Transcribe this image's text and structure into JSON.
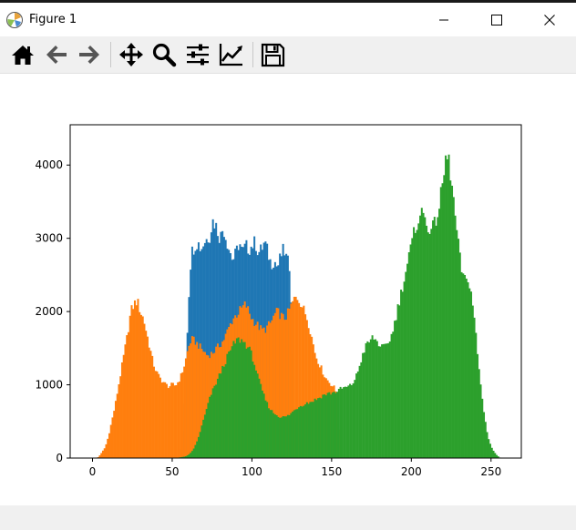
{
  "window": {
    "title": "Figure 1"
  },
  "toolbar": {
    "tools": [
      "home-icon",
      "back-arrow-icon",
      "forward-arrow-icon",
      "pan-icon",
      "zoom-icon",
      "configure-subplots-icon",
      "edit-axis-icon",
      "save-icon"
    ]
  },
  "colors": {
    "blue": "#1f77b4",
    "orange": "#ff7f0e",
    "green": "#2ca02c"
  },
  "chart_data": {
    "type": "histogram",
    "title": "",
    "xlabel": "",
    "ylabel": "",
    "xlim": [
      -14,
      269
    ],
    "ylim": [
      0,
      4550
    ],
    "xticks": [
      0,
      50,
      100,
      150,
      200,
      250
    ],
    "yticks": [
      0,
      1000,
      2000,
      3000,
      4000
    ],
    "bins": 256,
    "series": [
      {
        "color": "#1f77b4",
        "points": [
          [
            55,
            0
          ],
          [
            57,
            500
          ],
          [
            58,
            1000
          ],
          [
            59,
            1500
          ],
          [
            60,
            2000
          ],
          [
            61,
            2500
          ],
          [
            62,
            2800
          ],
          [
            64,
            2900
          ],
          [
            66,
            2950
          ],
          [
            68,
            2850
          ],
          [
            70,
            2950
          ],
          [
            72,
            3000
          ],
          [
            74,
            3050
          ],
          [
            75,
            3250
          ],
          [
            77,
            3200
          ],
          [
            80,
            3000
          ],
          [
            82,
            3150
          ],
          [
            85,
            2900
          ],
          [
            88,
            2700
          ],
          [
            90,
            2800
          ],
          [
            92,
            2950
          ],
          [
            94,
            2800
          ],
          [
            96,
            2900
          ],
          [
            98,
            2850
          ],
          [
            100,
            2900
          ],
          [
            102,
            2950
          ],
          [
            104,
            2800
          ],
          [
            106,
            2850
          ],
          [
            108,
            2950
          ],
          [
            110,
            2800
          ],
          [
            112,
            2650
          ],
          [
            114,
            2700
          ],
          [
            116,
            2600
          ],
          [
            118,
            2750
          ],
          [
            120,
            2850
          ],
          [
            122,
            2700
          ],
          [
            124,
            2600
          ],
          [
            125,
            1800
          ],
          [
            126,
            1000
          ],
          [
            127,
            0
          ]
        ]
      },
      {
        "color": "#ff7f0e",
        "points": [
          [
            3,
            0
          ],
          [
            5,
            50
          ],
          [
            8,
            150
          ],
          [
            10,
            300
          ],
          [
            12,
            500
          ],
          [
            14,
            700
          ],
          [
            16,
            950
          ],
          [
            18,
            1200
          ],
          [
            20,
            1450
          ],
          [
            22,
            1700
          ],
          [
            24,
            2000
          ],
          [
            26,
            2100
          ],
          [
            28,
            2150
          ],
          [
            30,
            2000
          ],
          [
            32,
            1900
          ],
          [
            34,
            1700
          ],
          [
            36,
            1500
          ],
          [
            38,
            1300
          ],
          [
            40,
            1180
          ],
          [
            42,
            1100
          ],
          [
            44,
            1050
          ],
          [
            46,
            1000
          ],
          [
            48,
            980
          ],
          [
            50,
            1000
          ],
          [
            52,
            990
          ],
          [
            54,
            1050
          ],
          [
            56,
            1150
          ],
          [
            58,
            1300
          ],
          [
            60,
            1500
          ],
          [
            62,
            1620
          ],
          [
            64,
            1600
          ],
          [
            66,
            1550
          ],
          [
            68,
            1500
          ],
          [
            70,
            1450
          ],
          [
            72,
            1400
          ],
          [
            74,
            1420
          ],
          [
            76,
            1450
          ],
          [
            78,
            1500
          ],
          [
            80,
            1550
          ],
          [
            82,
            1600
          ],
          [
            84,
            1700
          ],
          [
            86,
            1800
          ],
          [
            88,
            1900
          ],
          [
            90,
            1950
          ],
          [
            92,
            2000
          ],
          [
            94,
            2050
          ],
          [
            96,
            2100
          ],
          [
            98,
            2000
          ],
          [
            100,
            1900
          ],
          [
            102,
            1850
          ],
          [
            104,
            1800
          ],
          [
            106,
            1750
          ],
          [
            108,
            1750
          ],
          [
            110,
            1800
          ],
          [
            112,
            1850
          ],
          [
            114,
            1950
          ],
          [
            116,
            2000
          ],
          [
            118,
            1950
          ],
          [
            120,
            1900
          ],
          [
            122,
            1950
          ],
          [
            124,
            2050
          ],
          [
            126,
            2150
          ],
          [
            128,
            2200
          ],
          [
            130,
            2150
          ],
          [
            132,
            2050
          ],
          [
            134,
            1950
          ],
          [
            136,
            1800
          ],
          [
            138,
            1600
          ],
          [
            140,
            1400
          ],
          [
            142,
            1300
          ],
          [
            144,
            1200
          ],
          [
            146,
            1100
          ],
          [
            148,
            1050
          ],
          [
            150,
            1000
          ],
          [
            152,
            950
          ],
          [
            154,
            800
          ],
          [
            155,
            0
          ]
        ]
      },
      {
        "color": "#2ca02c",
        "points": [
          [
            52,
            0
          ],
          [
            55,
            10
          ],
          [
            58,
            20
          ],
          [
            60,
            40
          ],
          [
            62,
            80
          ],
          [
            64,
            150
          ],
          [
            66,
            250
          ],
          [
            68,
            400
          ],
          [
            70,
            550
          ],
          [
            72,
            700
          ],
          [
            74,
            850
          ],
          [
            76,
            950
          ],
          [
            78,
            1050
          ],
          [
            80,
            1150
          ],
          [
            82,
            1250
          ],
          [
            84,
            1350
          ],
          [
            86,
            1450
          ],
          [
            88,
            1530
          ],
          [
            90,
            1600
          ],
          [
            92,
            1620
          ],
          [
            94,
            1600
          ],
          [
            96,
            1560
          ],
          [
            98,
            1500
          ],
          [
            100,
            1400
          ],
          [
            102,
            1250
          ],
          [
            104,
            1080
          ],
          [
            106,
            950
          ],
          [
            108,
            820
          ],
          [
            110,
            720
          ],
          [
            112,
            650
          ],
          [
            114,
            610
          ],
          [
            116,
            580
          ],
          [
            118,
            560
          ],
          [
            120,
            560
          ],
          [
            122,
            570
          ],
          [
            124,
            600
          ],
          [
            126,
            640
          ],
          [
            128,
            680
          ],
          [
            130,
            710
          ],
          [
            132,
            730
          ],
          [
            134,
            750
          ],
          [
            136,
            760
          ],
          [
            138,
            780
          ],
          [
            140,
            800
          ],
          [
            142,
            820
          ],
          [
            144,
            850
          ],
          [
            146,
            870
          ],
          [
            148,
            880
          ],
          [
            150,
            890
          ],
          [
            152,
            900
          ],
          [
            154,
            920
          ],
          [
            156,
            950
          ],
          [
            158,
            960
          ],
          [
            160,
            970
          ],
          [
            162,
            990
          ],
          [
            164,
            1050
          ],
          [
            166,
            1150
          ],
          [
            168,
            1300
          ],
          [
            170,
            1450
          ],
          [
            172,
            1550
          ],
          [
            174,
            1600
          ],
          [
            176,
            1650
          ],
          [
            178,
            1600
          ],
          [
            180,
            1550
          ],
          [
            182,
            1500
          ],
          [
            184,
            1520
          ],
          [
            186,
            1600
          ],
          [
            188,
            1700
          ],
          [
            190,
            1900
          ],
          [
            192,
            2100
          ],
          [
            194,
            2300
          ],
          [
            196,
            2500
          ],
          [
            198,
            2700
          ],
          [
            200,
            2900
          ],
          [
            202,
            3100
          ],
          [
            204,
            3250
          ],
          [
            206,
            3350
          ],
          [
            208,
            3300
          ],
          [
            210,
            3200
          ],
          [
            212,
            3100
          ],
          [
            214,
            3150
          ],
          [
            216,
            3300
          ],
          [
            218,
            3500
          ],
          [
            220,
            3800
          ],
          [
            222,
            4150
          ],
          [
            224,
            4000
          ],
          [
            226,
            3600
          ],
          [
            228,
            3200
          ],
          [
            230,
            2800
          ],
          [
            232,
            2500
          ],
          [
            234,
            2400
          ],
          [
            236,
            2450
          ],
          [
            238,
            2200
          ],
          [
            240,
            1800
          ],
          [
            242,
            1300
          ],
          [
            244,
            900
          ],
          [
            246,
            550
          ],
          [
            248,
            300
          ],
          [
            250,
            160
          ],
          [
            252,
            80
          ],
          [
            254,
            30
          ],
          [
            256,
            0
          ]
        ]
      }
    ]
  }
}
